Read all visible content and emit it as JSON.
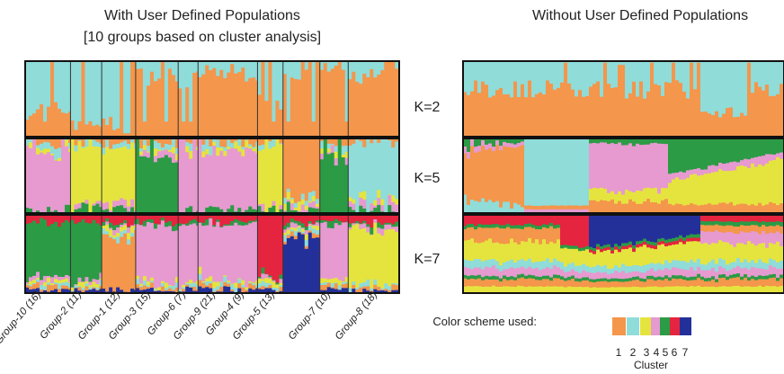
{
  "left_title_line1": "With User Defined Populations",
  "left_title_line2": "[10 groups based on cluster analysis]",
  "right_title": "Without User Defined Populations",
  "k_labels": [
    "K=2",
    "K=5",
    "K=7"
  ],
  "group_labels": [
    "Group-10 (16)",
    "Group-2 (11)",
    "Group-1 (12)",
    "Group-3 (15)",
    "Group-6 (7)",
    "Group-9 (21)",
    "Group-4 (9)",
    "Group-5 (13)",
    "Group-7 (10)",
    "Group-8 (18)"
  ],
  "legend": {
    "label": "Color scheme used:",
    "numbers": [
      "1",
      "2",
      "3",
      "4",
      "5",
      "6",
      "7"
    ],
    "caption": "Cluster"
  },
  "colors": {
    "c1": "#f4964b",
    "c2": "#8fdcd9",
    "c3": "#e5e43f",
    "c4": "#e69ad0",
    "c5": "#2b9b45",
    "c6": "#e5243f",
    "c7": "#24309a"
  },
  "chart_data": {
    "type": "structure-barplot",
    "panels": [
      "With User Defined Populations",
      "Without User Defined Populations"
    ],
    "k_values": [
      2,
      5,
      7
    ],
    "groups": [
      {
        "name": "Group-10",
        "n": 16
      },
      {
        "name": "Group-2",
        "n": 11
      },
      {
        "name": "Group-1",
        "n": 12
      },
      {
        "name": "Group-3",
        "n": 15
      },
      {
        "name": "Group-6",
        "n": 7
      },
      {
        "name": "Group-9",
        "n": 21
      },
      {
        "name": "Group-4",
        "n": 9
      },
      {
        "name": "Group-5",
        "n": 13
      },
      {
        "name": "Group-7",
        "n": 10
      },
      {
        "name": "Group-8",
        "n": 18
      }
    ],
    "left_k2_cluster1_fraction_by_group": [
      0.35,
      0.2,
      0.15,
      0.8,
      0.75,
      0.85,
      0.45,
      0.85,
      0.9,
      0.8
    ],
    "left_k5_dominant_cluster_by_group": [
      4,
      3,
      3,
      5,
      4,
      4,
      3,
      1,
      5,
      2
    ],
    "left_k7_dominant_cluster_by_group": [
      5,
      5,
      1,
      4,
      4,
      4,
      6,
      7,
      4,
      3
    ]
  }
}
